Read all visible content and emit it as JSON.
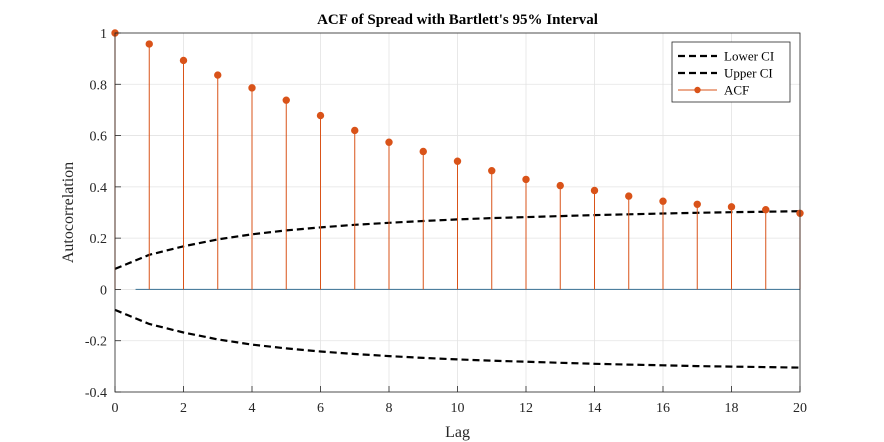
{
  "chart_data": {
    "type": "line",
    "title": "ACF of Spread with Bartlett's 95% Interval",
    "xlabel": "Lag",
    "ylabel": "Autocorrelation",
    "xlim": [
      0,
      20
    ],
    "ylim": [
      -0.4,
      1
    ],
    "x_ticks": [
      0,
      2,
      4,
      6,
      8,
      10,
      12,
      14,
      16,
      18,
      20
    ],
    "y_ticks": [
      -0.4,
      -0.2,
      0,
      0.2,
      0.4,
      0.6,
      0.8,
      1
    ],
    "grid": true,
    "legend_position": "top-right",
    "series": [
      {
        "name": "Lower CI",
        "style": "dashed",
        "color": "#000000",
        "x": [
          0,
          1,
          2,
          3,
          4,
          5,
          6,
          7,
          8,
          9,
          10,
          11,
          12,
          13,
          14,
          15,
          16,
          17,
          18,
          19,
          20
        ],
        "values": [
          -0.08,
          -0.135,
          -0.168,
          -0.195,
          -0.215,
          -0.23,
          -0.242,
          -0.252,
          -0.26,
          -0.267,
          -0.273,
          -0.278,
          -0.282,
          -0.286,
          -0.29,
          -0.293,
          -0.296,
          -0.299,
          -0.301,
          -0.303,
          -0.305
        ]
      },
      {
        "name": "Upper CI",
        "style": "dashed",
        "color": "#000000",
        "x": [
          0,
          1,
          2,
          3,
          4,
          5,
          6,
          7,
          8,
          9,
          10,
          11,
          12,
          13,
          14,
          15,
          16,
          17,
          18,
          19,
          20
        ],
        "values": [
          0.08,
          0.135,
          0.168,
          0.195,
          0.215,
          0.23,
          0.242,
          0.252,
          0.26,
          0.267,
          0.273,
          0.278,
          0.282,
          0.286,
          0.29,
          0.293,
          0.296,
          0.299,
          0.301,
          0.303,
          0.305
        ]
      },
      {
        "name": "ACF",
        "style": "stem",
        "color": "#d95319",
        "x": [
          0,
          1,
          2,
          3,
          4,
          5,
          6,
          7,
          8,
          9,
          10,
          11,
          12,
          13,
          14,
          15,
          16,
          17,
          18,
          19,
          20
        ],
        "values": [
          1.0,
          0.957,
          0.893,
          0.836,
          0.786,
          0.738,
          0.678,
          0.62,
          0.574,
          0.538,
          0.5,
          0.463,
          0.429,
          0.405,
          0.386,
          0.364,
          0.344,
          0.332,
          0.322,
          0.311,
          0.297
        ]
      }
    ],
    "zero_line_color": "#4d7f9e"
  }
}
